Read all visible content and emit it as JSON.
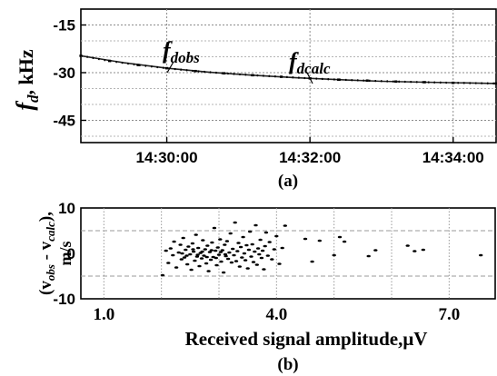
{
  "chart_data": [
    {
      "type": "line",
      "panel_label": "(a)",
      "ylabel_main": "f",
      "ylabel_sub": "d",
      "ylabel_unit": ", kHz",
      "ylim": [
        -52,
        -10
      ],
      "yticks": [
        "-15",
        "-30",
        "-45"
      ],
      "ytick_values": [
        -15,
        -30,
        -45
      ],
      "xlim_minutes": [
        28.8,
        34.6
      ],
      "xticks": [
        "14:30:00",
        "14:32:00",
        "14:34:00"
      ],
      "xtick_values_minutes": [
        30,
        32,
        34
      ],
      "grid": true,
      "series": [
        {
          "name": "f_dobs",
          "x": [
            28.8,
            29.2,
            29.6,
            30.0,
            30.4,
            30.8,
            31.2,
            31.6,
            32.0,
            32.4,
            32.8,
            33.2,
            33.6,
            34.0,
            34.6
          ],
          "y": [
            -24.7,
            -26.3,
            -27.6,
            -28.6,
            -29.5,
            -30.2,
            -30.8,
            -31.3,
            -31.8,
            -32.2,
            -32.5,
            -32.8,
            -33.0,
            -33.2,
            -33.4
          ]
        },
        {
          "name": "f_dcalc",
          "x": [
            28.8,
            29.4,
            30.0,
            30.6,
            31.2,
            31.8,
            32.4,
            33.0,
            33.6,
            34.6
          ],
          "y": [
            -24.7,
            -26.9,
            -28.6,
            -29.9,
            -30.8,
            -31.6,
            -32.2,
            -32.7,
            -33.0,
            -33.4
          ]
        }
      ],
      "annotations": [
        {
          "base": "f",
          "sub": "dobs"
        },
        {
          "base": "f",
          "sub": "dcalc"
        }
      ]
    },
    {
      "type": "scatter",
      "panel_label": "(b)",
      "ylabel_open": "(v",
      "ylabel_sub1": "obs",
      "ylabel_mid": " - v",
      "ylabel_sub2": "calc",
      "ylabel_close": "),",
      "ylabel_unit": "m/s",
      "xlabel": "Received signal amplitude,μV",
      "xlim": [
        0.6,
        7.8
      ],
      "ylim": [
        -10,
        10
      ],
      "xticks": [
        "1.0",
        "4.0",
        "7.0"
      ],
      "xtick_values": [
        1.0,
        4.0,
        7.0
      ],
      "yticks": [
        "10",
        "0",
        "-10"
      ],
      "ytick_values": [
        10,
        0,
        -10
      ],
      "grid": true,
      "points": [
        [
          2.02,
          -4.8
        ],
        [
          2.08,
          0.6
        ],
        [
          2.12,
          -2.1
        ],
        [
          2.16,
          1.1
        ],
        [
          2.2,
          -0.4
        ],
        [
          2.22,
          2.6
        ],
        [
          2.26,
          -3.1
        ],
        [
          2.3,
          0.2
        ],
        [
          2.33,
          1.9
        ],
        [
          2.35,
          -1.3
        ],
        [
          2.38,
          3.4
        ],
        [
          2.4,
          -0.9
        ],
        [
          2.42,
          0.8
        ],
        [
          2.45,
          -2.4
        ],
        [
          2.47,
          1.5
        ],
        [
          2.5,
          -0.2
        ],
        [
          2.52,
          -3.6
        ],
        [
          2.54,
          2.2
        ],
        [
          2.56,
          0.4
        ],
        [
          2.58,
          -1.6
        ],
        [
          2.6,
          4.1
        ],
        [
          2.62,
          -0.7
        ],
        [
          2.64,
          1.2
        ],
        [
          2.66,
          -2.8
        ],
        [
          2.68,
          0.1
        ],
        [
          2.7,
          -1.1
        ],
        [
          2.72,
          2.9
        ],
        [
          2.74,
          -0.5
        ],
        [
          2.76,
          0.9
        ],
        [
          2.78,
          -2.2
        ],
        [
          2.8,
          1.7
        ],
        [
          2.82,
          -3.9
        ],
        [
          2.84,
          0.3
        ],
        [
          2.86,
          -1.4
        ],
        [
          2.88,
          2.4
        ],
        [
          2.9,
          -0.8
        ],
        [
          2.92,
          5.6
        ],
        [
          2.94,
          0.6
        ],
        [
          2.96,
          -2.6
        ],
        [
          2.98,
          1.3
        ],
        [
          3.0,
          -0.3
        ],
        [
          3.02,
          3.1
        ],
        [
          3.04,
          -1.8
        ],
        [
          3.06,
          0.7
        ],
        [
          3.08,
          -4.2
        ],
        [
          3.1,
          1.9
        ],
        [
          3.12,
          -0.6
        ],
        [
          3.14,
          2.7
        ],
        [
          3.16,
          -1.2
        ],
        [
          3.18,
          0.2
        ],
        [
          3.2,
          4.4
        ],
        [
          3.22,
          -2.0
        ],
        [
          3.24,
          1.0
        ],
        [
          3.26,
          -0.4
        ],
        [
          3.28,
          6.8
        ],
        [
          3.3,
          -1.7
        ],
        [
          3.32,
          0.5
        ],
        [
          3.34,
          2.3
        ],
        [
          3.36,
          -2.9
        ],
        [
          3.38,
          1.4
        ],
        [
          3.4,
          -0.9
        ],
        [
          3.42,
          3.6
        ],
        [
          3.44,
          0.0
        ],
        [
          3.46,
          -1.5
        ],
        [
          3.48,
          1.8
        ],
        [
          3.5,
          -3.3
        ],
        [
          3.52,
          0.8
        ],
        [
          3.54,
          4.8
        ],
        [
          3.56,
          -0.7
        ],
        [
          3.58,
          2.0
        ],
        [
          3.6,
          -1.9
        ],
        [
          3.62,
          0.4
        ],
        [
          3.64,
          6.2
        ],
        [
          3.66,
          -2.5
        ],
        [
          3.68,
          1.1
        ],
        [
          3.7,
          -0.2
        ],
        [
          3.72,
          3.0
        ],
        [
          3.74,
          -1.0
        ],
        [
          3.76,
          0.6
        ],
        [
          3.78,
          -3.5
        ],
        [
          3.8,
          1.6
        ],
        [
          3.82,
          4.6
        ],
        [
          3.85,
          -0.5
        ],
        [
          3.88,
          2.5
        ],
        [
          3.92,
          -1.3
        ],
        [
          3.96,
          0.9
        ],
        [
          4.0,
          3.8
        ],
        [
          4.05,
          -2.3
        ],
        [
          4.1,
          1.2
        ],
        [
          4.15,
          6.1
        ],
        [
          2.36,
          0.0
        ],
        [
          2.44,
          -0.5
        ],
        [
          2.55,
          0.9
        ],
        [
          2.63,
          -0.3
        ],
        [
          2.71,
          0.4
        ],
        [
          2.79,
          -0.8
        ],
        [
          2.87,
          0.7
        ],
        [
          2.95,
          -1.0
        ],
        [
          3.03,
          0.3
        ],
        [
          3.11,
          -0.2
        ],
        [
          4.5,
          3.2
        ],
        [
          4.62,
          -1.8
        ],
        [
          4.75,
          2.8
        ],
        [
          5.0,
          -0.4
        ],
        [
          5.1,
          3.6
        ],
        [
          5.18,
          2.6
        ],
        [
          5.6,
          -0.6
        ],
        [
          5.72,
          0.7
        ],
        [
          6.28,
          1.7
        ],
        [
          6.4,
          0.5
        ],
        [
          6.55,
          0.8
        ],
        [
          7.55,
          -0.4
        ]
      ]
    }
  ]
}
